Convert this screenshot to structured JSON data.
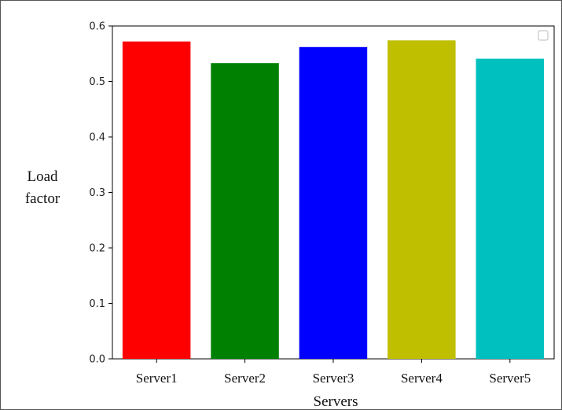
{
  "chart_data": {
    "type": "bar",
    "categories": [
      "Server1",
      "Server2",
      "Server3",
      "Server4",
      "Server5"
    ],
    "values": [
      0.572,
      0.533,
      0.562,
      0.574,
      0.541
    ],
    "colors": [
      "#ff0000",
      "#008000",
      "#0000ff",
      "#bfbf00",
      "#00bfbf"
    ],
    "xlabel": "Servers",
    "ylabel_line1": "Load",
    "ylabel_line2": "factor",
    "ylim": [
      0,
      0.6
    ],
    "yticks": [
      "0.0",
      "0.1",
      "0.2",
      "0.3",
      "0.4",
      "0.5",
      "0.6"
    ],
    "grid": false,
    "legend": "top-right, empty box"
  }
}
